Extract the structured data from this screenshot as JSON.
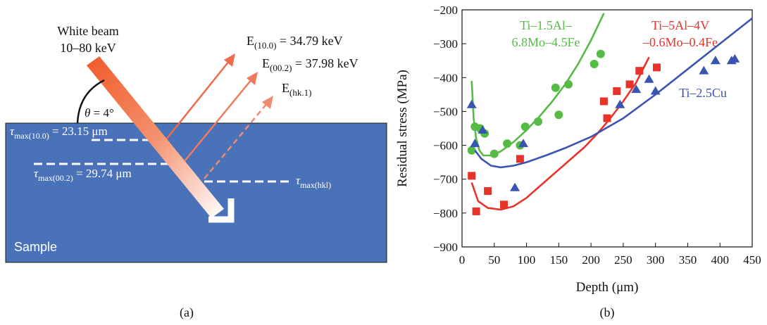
{
  "panel_a": {
    "label": "(a)",
    "beam": {
      "title": "White beam",
      "energy": "10–80 keV"
    },
    "angle": {
      "symbol": "θ",
      "value": " = 4°"
    },
    "sample_label": "Sample",
    "reflections": [
      {
        "label": "E",
        "sub": "(10.0)",
        "value": " = 34.79 keV"
      },
      {
        "label": "E",
        "sub": "(00.2)",
        "value": " = 37.98 keV"
      },
      {
        "label": "E",
        "sub": "(hk.1)",
        "value": ""
      }
    ],
    "depths": [
      {
        "symbol": "τ",
        "sub": "max(10.0)",
        "value": " = 23.15 μm"
      },
      {
        "symbol": "τ",
        "sub": "max(00.2)",
        "value": " = 29.74 μm"
      },
      {
        "symbol": "τ",
        "sub": "max(hkl)",
        "value": ""
      }
    ],
    "colors": {
      "sample": "#4a72b8",
      "beam_start": "#f05a28",
      "beam_end": "#ffffff",
      "reflection": "#ee6a4a"
    }
  },
  "panel_b": {
    "label": "(b)"
  },
  "chart_data": {
    "type": "scatter",
    "xlabel": "Depth (μm)",
    "ylabel": "Residual stress (MPa)",
    "xlim": [
      0,
      450
    ],
    "ylim": [
      -900,
      -200
    ],
    "xticks": [
      0,
      50,
      100,
      150,
      200,
      250,
      300,
      350,
      400,
      450
    ],
    "yticks": [
      -900,
      -800,
      -700,
      -600,
      -500,
      -400,
      -300,
      -200
    ],
    "grid": false,
    "series": [
      {
        "name": "Ti–1.5Al–6.8Mo–4.5Fe",
        "name_lines": [
          "Ti–1.5Al–",
          "6.8Mo–4.5Fe"
        ],
        "color": "#55bb44",
        "marker": "circle",
        "points": [
          [
            15,
            -615
          ],
          [
            20,
            -545
          ],
          [
            28,
            -550
          ],
          [
            35,
            -565
          ],
          [
            50,
            -625
          ],
          [
            70,
            -595
          ],
          [
            90,
            -600
          ],
          [
            98,
            -545
          ],
          [
            118,
            -530
          ],
          [
            145,
            -430
          ],
          [
            150,
            -510
          ],
          [
            165,
            -420
          ],
          [
            205,
            -360
          ],
          [
            215,
            -330
          ]
        ],
        "fit": [
          [
            15,
            -410
          ],
          [
            18,
            -520
          ],
          [
            22,
            -580
          ],
          [
            27,
            -615
          ],
          [
            33,
            -630
          ],
          [
            45,
            -630
          ],
          [
            60,
            -618
          ],
          [
            80,
            -590
          ],
          [
            100,
            -555
          ],
          [
            120,
            -515
          ],
          [
            140,
            -470
          ],
          [
            160,
            -420
          ],
          [
            180,
            -360
          ],
          [
            200,
            -290
          ],
          [
            220,
            -210
          ]
        ]
      },
      {
        "name": "Ti–5Al–4V –0.6Mo–0.4Fe",
        "name_lines": [
          "Ti–5Al–4V",
          "–0.6Mo–0.4Fe"
        ],
        "color": "#e8332a",
        "marker": "square",
        "points": [
          [
            15,
            -690
          ],
          [
            22,
            -795
          ],
          [
            40,
            -735
          ],
          [
            65,
            -775
          ],
          [
            90,
            -640
          ],
          [
            220,
            -470
          ],
          [
            225,
            -520
          ],
          [
            240,
            -440
          ],
          [
            260,
            -420
          ],
          [
            275,
            -380
          ],
          [
            302,
            -370
          ]
        ],
        "fit": [
          [
            15,
            -710
          ],
          [
            25,
            -765
          ],
          [
            40,
            -785
          ],
          [
            60,
            -790
          ],
          [
            80,
            -780
          ],
          [
            100,
            -755
          ],
          [
            130,
            -705
          ],
          [
            160,
            -655
          ],
          [
            190,
            -605
          ],
          [
            210,
            -565
          ],
          [
            230,
            -520
          ],
          [
            250,
            -470
          ],
          [
            270,
            -415
          ],
          [
            290,
            -340
          ]
        ]
      },
      {
        "name": "Ti–2.5Cu",
        "name_lines": [
          "Ti–2.5Cu"
        ],
        "color": "#3a55b0",
        "marker": "triangle",
        "points": [
          [
            15,
            -480
          ],
          [
            20,
            -595
          ],
          [
            32,
            -555
          ],
          [
            82,
            -725
          ],
          [
            95,
            -595
          ],
          [
            245,
            -480
          ],
          [
            270,
            -435
          ],
          [
            290,
            -405
          ],
          [
            300,
            -440
          ],
          [
            375,
            -380
          ],
          [
            393,
            -350
          ],
          [
            418,
            -350
          ],
          [
            423,
            -345
          ]
        ],
        "fit": [
          [
            20,
            -615
          ],
          [
            30,
            -640
          ],
          [
            45,
            -660
          ],
          [
            60,
            -665
          ],
          [
            80,
            -660
          ],
          [
            100,
            -650
          ],
          [
            130,
            -630
          ],
          [
            160,
            -608
          ],
          [
            200,
            -575
          ],
          [
            250,
            -520
          ],
          [
            300,
            -450
          ],
          [
            350,
            -375
          ],
          [
            400,
            -300
          ],
          [
            450,
            -225
          ]
        ]
      }
    ]
  }
}
